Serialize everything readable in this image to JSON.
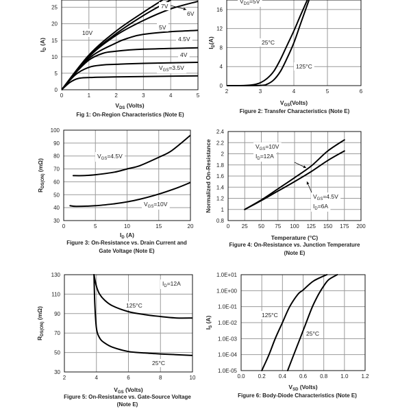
{
  "chart_data": [
    {
      "id": "fig1",
      "type": "line",
      "grid": true,
      "title": [
        "Fig 1: On-Region Characteristics (Note E)"
      ],
      "xlabel": {
        "pre": "V",
        "sub": "DS",
        "post": " (Volts)"
      },
      "ylabel": {
        "pre": "I",
        "sub": "D",
        "post": " (A)"
      },
      "xlim": [
        0,
        5
      ],
      "ylim": [
        0,
        27.2
      ],
      "xticks": [
        {
          "v": 0,
          "t": "0"
        },
        {
          "v": 1,
          "t": "1"
        },
        {
          "v": 2,
          "t": "2"
        },
        {
          "v": 3,
          "t": "3"
        },
        {
          "v": 4,
          "t": "4"
        },
        {
          "v": 5,
          "t": "5"
        }
      ],
      "yticks": [
        {
          "v": 0,
          "t": "0"
        },
        {
          "v": 5,
          "t": "5"
        },
        {
          "v": 10,
          "t": "10"
        },
        {
          "v": 15,
          "t": "15"
        },
        {
          "v": 20,
          "t": "20"
        },
        {
          "v": 25,
          "t": "25"
        }
      ],
      "series": [
        {
          "points": [
            [
              0,
              0
            ],
            [
              0.3,
              2.2
            ],
            [
              0.6,
              3.4
            ],
            [
              1,
              3.7
            ],
            [
              2,
              3.9
            ],
            [
              5,
              4.2
            ]
          ]
        },
        {
          "points": [
            [
              0,
              0
            ],
            [
              0.5,
              4.5
            ],
            [
              1,
              6.8
            ],
            [
              1.5,
              7.5
            ],
            [
              2,
              7.7
            ],
            [
              3,
              8
            ],
            [
              5,
              8.3
            ]
          ]
        },
        {
          "points": [
            [
              0,
              0
            ],
            [
              0.5,
              5
            ],
            [
              1,
              9
            ],
            [
              1.5,
              11
            ],
            [
              2,
              11.7
            ],
            [
              3,
              12.3
            ],
            [
              5,
              12.7
            ]
          ]
        },
        {
          "points": [
            [
              0,
              0
            ],
            [
              1,
              9.5
            ],
            [
              2,
              14.2
            ],
            [
              2.5,
              15.8
            ],
            [
              3,
              16.8
            ],
            [
              4,
              17.6
            ],
            [
              5,
              18
            ]
          ]
        },
        {
          "points": [
            [
              0,
              0
            ],
            [
              1,
              10
            ],
            [
              2,
              16.5
            ],
            [
              3,
              21
            ],
            [
              4,
              24.5
            ],
            [
              5,
              26.8
            ]
          ]
        },
        {
          "points": [
            [
              0,
              0
            ],
            [
              1,
              10.2
            ],
            [
              2,
              17
            ],
            [
              3,
              22.5
            ],
            [
              4,
              27.2
            ]
          ]
        },
        {
          "points": [
            [
              0,
              0
            ],
            [
              1,
              10.5
            ],
            [
              2,
              17.8
            ],
            [
              3,
              23.5
            ],
            [
              3.7,
              27.2
            ]
          ]
        }
      ],
      "annotations": [
        {
          "pre": "7V"
        },
        {
          "pre": "6V"
        },
        {
          "pre": "5V"
        },
        {
          "pre": "4.5V"
        },
        {
          "pre": "4V"
        },
        {
          "pre": "V",
          "sub": "GS",
          "post": "=3.5V"
        },
        {
          "pre": "10V"
        }
      ]
    },
    {
      "id": "fig2",
      "type": "line",
      "grid": true,
      "title": [
        "Figure 2: Transfer Characteristics (Note E)"
      ],
      "xlabel": {
        "pre": "V",
        "sub": "GS",
        "post": "(Volts)"
      },
      "ylabel": {
        "pre": "I",
        "sub": "D",
        "post": "(A)"
      },
      "xlim": [
        2,
        6
      ],
      "ylim": [
        0,
        18
      ],
      "xticks": [
        {
          "v": 2,
          "t": "2"
        },
        {
          "v": 3,
          "t": "3"
        },
        {
          "v": 4,
          "t": "4"
        },
        {
          "v": 5,
          "t": "5"
        },
        {
          "v": 6,
          "t": "6"
        }
      ],
      "yticks": [
        {
          "v": 0,
          "t": "0"
        },
        {
          "v": 4,
          "t": "4"
        },
        {
          "v": 8,
          "t": "8"
        },
        {
          "v": 12,
          "t": "12"
        },
        {
          "v": 16,
          "t": "16"
        }
      ],
      "series": [
        {
          "name": "25°C",
          "points": [
            [
              2,
              0
            ],
            [
              2.5,
              0.02
            ],
            [
              2.8,
              0.2
            ],
            [
              3,
              0.6
            ],
            [
              3.2,
              1.5
            ],
            [
              3.4,
              3
            ],
            [
              3.6,
              5.5
            ],
            [
              3.8,
              8.5
            ],
            [
              4,
              11.5
            ],
            [
              4.2,
              14.8
            ],
            [
              4.4,
              18
            ]
          ]
        },
        {
          "name": "125°C",
          "points": [
            [
              2,
              0
            ],
            [
              3,
              0.05
            ],
            [
              3.2,
              0.3
            ],
            [
              3.4,
              1.2
            ],
            [
              3.6,
              3
            ],
            [
              3.8,
              5.8
            ],
            [
              4,
              9
            ],
            [
              4.2,
              13
            ],
            [
              4.45,
              18
            ]
          ]
        }
      ],
      "annotations": [
        {
          "pre": "V",
          "sub": "DS",
          "post": "=5V"
        },
        {
          "pre": "25°C"
        },
        {
          "pre": "125°C"
        }
      ]
    },
    {
      "id": "fig3",
      "type": "line",
      "grid": true,
      "title": [
        "Figure 3: On-Resistance vs. Drain Current and",
        "Gate Voltage (Note E)"
      ],
      "xlabel": {
        "pre": "I",
        "sub": "D",
        "post": " (A)"
      },
      "ylabel": {
        "pre": "R",
        "sub": "DS(ON)",
        "post": " (mΩ)"
      },
      "xlim": [
        0,
        20
      ],
      "ylim": [
        30,
        100
      ],
      "xticks": [
        {
          "v": 0,
          "t": "0"
        },
        {
          "v": 5,
          "t": "5"
        },
        {
          "v": 10,
          "t": "10"
        },
        {
          "v": 15,
          "t": "15"
        },
        {
          "v": 20,
          "t": "20"
        }
      ],
      "yticks": [
        {
          "v": 30,
          "t": "30"
        },
        {
          "v": 40,
          "t": "40"
        },
        {
          "v": 50,
          "t": "50"
        },
        {
          "v": 60,
          "t": "60"
        },
        {
          "v": 70,
          "t": "70"
        },
        {
          "v": 80,
          "t": "80"
        },
        {
          "v": 90,
          "t": "90"
        },
        {
          "v": 100,
          "t": "100"
        }
      ],
      "series": [
        {
          "name": "VGS=4.5V",
          "points": [
            [
              1.5,
              64.8
            ],
            [
              3,
              64.8
            ],
            [
              5,
              65.5
            ],
            [
              8,
              67.5
            ],
            [
              10,
              70
            ],
            [
              12,
              72.5
            ],
            [
              15,
              79
            ],
            [
              17,
              84
            ],
            [
              20,
              96
            ]
          ]
        },
        {
          "name": "VGS=10V",
          "points": [
            [
              1,
              41.5
            ],
            [
              2,
              41
            ],
            [
              5,
              41.5
            ],
            [
              8,
              43
            ],
            [
              10,
              44.5
            ],
            [
              12,
              46.5
            ],
            [
              15,
              50.5
            ],
            [
              18,
              55.5
            ],
            [
              20,
              59.5
            ]
          ]
        }
      ],
      "annotations": [
        {
          "pre": "V",
          "sub": "GS",
          "post": "=4.5V"
        },
        {
          "pre": "V",
          "sub": "GS",
          "post": "=10V"
        }
      ]
    },
    {
      "id": "fig4",
      "type": "line",
      "grid": true,
      "title": [
        "Figure 4: On-Resistance vs. Junction Temperature",
        "(Note E)"
      ],
      "xlabel": {
        "pre": "Temperature (°C)"
      },
      "ylabel": {
        "pre": "Normalized On-Resistance"
      },
      "xlim": [
        0,
        200
      ],
      "ylim": [
        0.8,
        2.4
      ],
      "xticks": [
        {
          "v": 0,
          "t": "0"
        },
        {
          "v": 25,
          "t": "25"
        },
        {
          "v": 50,
          "t": "50"
        },
        {
          "v": 75,
          "t": "75"
        },
        {
          "v": 100,
          "t": "100"
        },
        {
          "v": 125,
          "t": "125"
        },
        {
          "v": 150,
          "t": "150"
        },
        {
          "v": 175,
          "t": "175"
        },
        {
          "v": 200,
          "t": "200"
        }
      ],
      "yticks": [
        {
          "v": 0.8,
          "t": "0.8"
        },
        {
          "v": 1,
          "t": "1"
        },
        {
          "v": 1.2,
          "t": "1.2"
        },
        {
          "v": 1.4,
          "t": "1.4"
        },
        {
          "v": 1.6,
          "t": "1.6"
        },
        {
          "v": 1.8,
          "t": "1.8"
        },
        {
          "v": 2,
          "t": "2"
        },
        {
          "v": 2.2,
          "t": "2.2"
        },
        {
          "v": 2.4,
          "t": "2.4"
        }
      ],
      "series": [
        {
          "name": "VGS=10V, ID=12A",
          "points": [
            [
              25,
              1
            ],
            [
              50,
              1.17
            ],
            [
              75,
              1.37
            ],
            [
              100,
              1.57
            ],
            [
              125,
              1.78
            ],
            [
              150,
              2.05
            ],
            [
              175,
              2.25
            ]
          ]
        },
        {
          "name": "VGS=4.5V, ID=6A",
          "points": [
            [
              25,
              1
            ],
            [
              50,
              1.16
            ],
            [
              75,
              1.33
            ],
            [
              100,
              1.5
            ],
            [
              125,
              1.68
            ],
            [
              150,
              1.88
            ],
            [
              175,
              2.05
            ]
          ]
        }
      ],
      "annotations": [
        {
          "pre": "V",
          "sub": "GS",
          "post": "=10V"
        },
        {
          "pre": "I",
          "sub": "D",
          "post": "=12A"
        },
        {
          "pre": "V",
          "sub": "GS",
          "post": "=4.5V"
        },
        {
          "pre": "I",
          "sub": "D",
          "post": "=6A"
        }
      ]
    },
    {
      "id": "fig5",
      "type": "line",
      "grid": true,
      "title": [
        "Figure 5: On-Resistance vs. Gate-Source Voltage",
        "(Note E)"
      ],
      "xlabel": {
        "pre": "V",
        "sub": "GS",
        "post": " (Volts)"
      },
      "ylabel": {
        "pre": "R",
        "sub": "DS(ON)",
        "post": " (mΩ)"
      },
      "xlim": [
        2,
        10
      ],
      "ylim": [
        30,
        130
      ],
      "xticks": [
        {
          "v": 2,
          "t": "2"
        },
        {
          "v": 4,
          "t": "4"
        },
        {
          "v": 6,
          "t": "6"
        },
        {
          "v": 8,
          "t": "8"
        },
        {
          "v": 10,
          "t": "10"
        }
      ],
      "yticks": [
        {
          "v": 30,
          "t": "30"
        },
        {
          "v": 50,
          "t": "50"
        },
        {
          "v": 70,
          "t": "70"
        },
        {
          "v": 90,
          "t": "90"
        },
        {
          "v": 110,
          "t": "110"
        },
        {
          "v": 130,
          "t": "130"
        }
      ],
      "series": [
        {
          "name": "125°C",
          "points": [
            [
              3.85,
              130
            ],
            [
              4,
              118
            ],
            [
              4.2,
              110
            ],
            [
              4.5,
              104
            ],
            [
              5,
              98
            ],
            [
              6,
              92
            ],
            [
              7,
              89
            ],
            [
              8,
              87
            ],
            [
              9,
              85.5
            ],
            [
              10,
              85.5
            ]
          ]
        },
        {
          "name": "25°C",
          "points": [
            [
              3.85,
              130
            ],
            [
              3.9,
              100
            ],
            [
              4,
              75
            ],
            [
              4.2,
              65
            ],
            [
              4.5,
              60
            ],
            [
              5,
              55.5
            ],
            [
              6,
              51
            ],
            [
              7,
              49.5
            ],
            [
              8,
              48.5
            ],
            [
              10,
              47
            ]
          ]
        }
      ],
      "annotations": [
        {
          "pre": "I",
          "sub": "D",
          "post": "=12A"
        },
        {
          "pre": "125°C"
        },
        {
          "pre": "25°C"
        }
      ]
    },
    {
      "id": "fig6",
      "type": "line",
      "grid": true,
      "yscale": "log",
      "title": [
        "Figure 6: Body-Diode Characteristics (Note E)"
      ],
      "xlabel": {
        "pre": "V",
        "sub": "SD",
        "post": " (Volts)"
      },
      "ylabel": {
        "pre": "I",
        "sub": "S",
        "post": " (A)"
      },
      "xlim": [
        0,
        1.2
      ],
      "ylim": [
        1e-05,
        10
      ],
      "xticks": [
        {
          "v": 0,
          "t": "0.0"
        },
        {
          "v": 0.2,
          "t": "0.2"
        },
        {
          "v": 0.4,
          "t": "0.4"
        },
        {
          "v": 0.6,
          "t": "0.6"
        },
        {
          "v": 0.8,
          "t": "0.8"
        },
        {
          "v": 1.0,
          "t": "1.0"
        },
        {
          "v": 1.2,
          "t": "1.2"
        }
      ],
      "yticks": [
        {
          "v": 1e-05,
          "t": "1.0E-05"
        },
        {
          "v": 0.0001,
          "t": "1.0E-04"
        },
        {
          "v": 0.001,
          "t": "1.0E-03"
        },
        {
          "v": 0.01,
          "t": "1.0E-02"
        },
        {
          "v": 0.1,
          "t": "1.0E-01"
        },
        {
          "v": 1,
          "t": "1.0E+00"
        },
        {
          "v": 10,
          "t": "1.0E+01"
        }
      ],
      "series": [
        {
          "name": "125°C",
          "points": [
            [
              0.2,
              1e-05
            ],
            [
              0.27,
              0.0001
            ],
            [
              0.33,
              0.001
            ],
            [
              0.4,
              0.01
            ],
            [
              0.47,
              0.1
            ],
            [
              0.55,
              0.6
            ],
            [
              0.6,
              1.1
            ],
            [
              0.7,
              4
            ],
            [
              0.83,
              10
            ]
          ]
        },
        {
          "name": "25°C",
          "points": [
            [
              0.45,
              1e-05
            ],
            [
              0.51,
              0.0001
            ],
            [
              0.57,
              0.001
            ],
            [
              0.63,
              0.01
            ],
            [
              0.69,
              0.1
            ],
            [
              0.75,
              0.6
            ],
            [
              0.8,
              2
            ],
            [
              0.85,
              5
            ],
            [
              0.93,
              10
            ]
          ]
        }
      ],
      "annotations": [
        {
          "pre": "125°C"
        },
        {
          "pre": "25°C"
        }
      ]
    }
  ]
}
